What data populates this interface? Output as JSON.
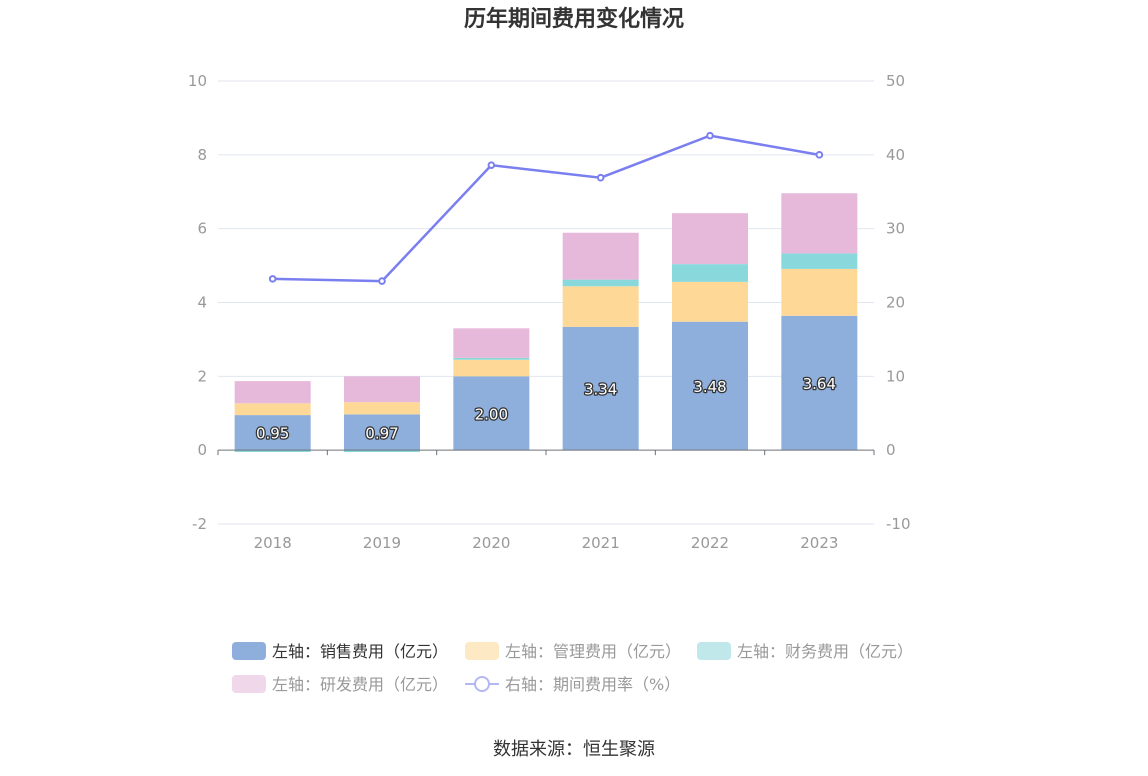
{
  "chart_data": {
    "type": "bar",
    "title": "历年期间费用变化情况",
    "categories": [
      "2018",
      "2019",
      "2020",
      "2021",
      "2022",
      "2023"
    ],
    "stacked": true,
    "left_axis": {
      "min": -2,
      "max": 10,
      "ticks": [
        "-2",
        "0",
        "2",
        "4",
        "6",
        "8",
        "10"
      ]
    },
    "right_axis": {
      "min": -10,
      "max": 50,
      "ticks": [
        "-10",
        "0",
        "10",
        "20",
        "30",
        "40",
        "50"
      ]
    },
    "series": [
      {
        "name": "左轴：销售费用（亿元）",
        "axis": "left",
        "kind": "bar",
        "color": "#8eaedb",
        "values": [
          0.95,
          0.97,
          2.0,
          3.34,
          3.48,
          3.64
        ],
        "labels": [
          "0.95",
          "0.97",
          "2.00",
          "3.34",
          "3.48",
          "3.64"
        ]
      },
      {
        "name": "左轴：管理费用（亿元）",
        "axis": "left",
        "kind": "bar",
        "color": "#fed897",
        "values": [
          0.32,
          0.33,
          0.45,
          1.1,
          1.08,
          1.27
        ]
      },
      {
        "name": "左轴：财务费用（亿元）",
        "axis": "left",
        "kind": "bar",
        "color": "#88d8dc",
        "values": [
          -0.05,
          -0.05,
          0.05,
          0.18,
          0.48,
          0.42
        ]
      },
      {
        "name": "左轴：研发费用（亿元）",
        "axis": "left",
        "kind": "bar",
        "color": "#e6b8da",
        "values": [
          0.6,
          0.7,
          0.8,
          1.27,
          1.38,
          1.63
        ]
      },
      {
        "name": "右轴：期间费用率（%）",
        "axis": "right",
        "kind": "line",
        "color": "#7a7ff0",
        "values": [
          23.2,
          22.9,
          38.6,
          36.9,
          42.6,
          40.0
        ]
      }
    ],
    "legend_position": "bottom",
    "grid": true,
    "source": "数据来源：恒生聚源"
  }
}
